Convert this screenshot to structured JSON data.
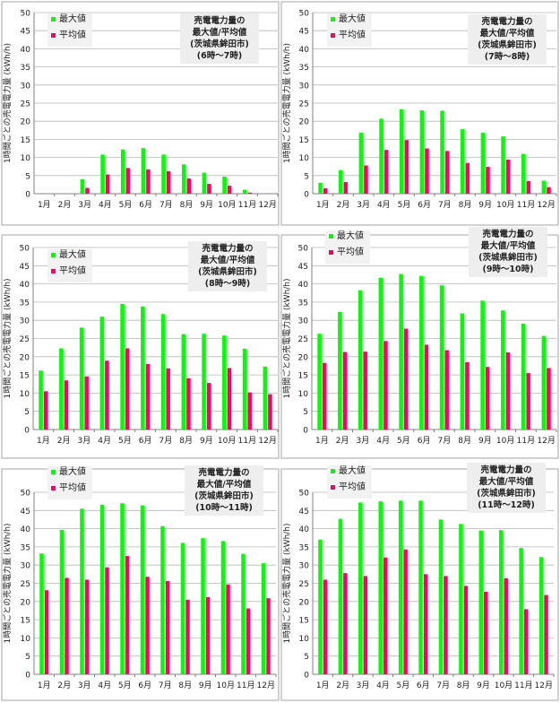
{
  "style": {
    "max_color": "#00ff00",
    "avg_color": "#ff0066",
    "grid_color": "#b8b8b8",
    "axis_color": "#808080",
    "title_box_color": "#eeeeee",
    "legend_box_color": "#f2f2f2"
  },
  "chart_data": [
    {
      "type": "bar",
      "title": [
        "売電電力量の",
        "最大値/平均値",
        "(茨城県鉾田市)",
        "(6時〜7時)"
      ],
      "ylabel": "1時間ごとの売電電力量 (kWh/h)",
      "ylim": [
        0,
        50
      ],
      "yticks": [
        "0",
        "5",
        "10",
        "15",
        "20",
        "25",
        "30",
        "35",
        "40",
        "45",
        "50"
      ],
      "categories": [
        "1月",
        "2月",
        "3月",
        "4月",
        "5月",
        "6月",
        "7月",
        "8月",
        "9月",
        "10月",
        "11月",
        "12月"
      ],
      "series": [
        {
          "name": "最大値",
          "values": [
            0,
            0,
            4.0,
            10.8,
            12.2,
            12.6,
            10.8,
            8.1,
            5.8,
            4.7,
            1.1,
            0
          ]
        },
        {
          "name": "平均値",
          "values": [
            0,
            0,
            1.6,
            5.3,
            7.1,
            6.7,
            6.2,
            4.2,
            2.7,
            2.2,
            0.3,
            0
          ]
        }
      ],
      "grid": true,
      "legend": "top-left"
    },
    {
      "type": "bar",
      "title": [
        "売電電力量の",
        "最大値/平均値",
        "(茨城県鉾田市)",
        "(7時〜8時)"
      ],
      "ylabel": "1時間ごとの売電電力量 (kWh/h)",
      "ylim": [
        0,
        50
      ],
      "yticks": [
        "0",
        "5",
        "10",
        "15",
        "20",
        "25",
        "30",
        "35",
        "40",
        "45",
        "50"
      ],
      "categories": [
        "1月",
        "2月",
        "3月",
        "4月",
        "5月",
        "6月",
        "7月",
        "8月",
        "9月",
        "10月",
        "11月",
        "12月"
      ],
      "series": [
        {
          "name": "最大値",
          "values": [
            3.0,
            6.5,
            16.8,
            20.7,
            23.3,
            23.0,
            22.9,
            17.8,
            16.8,
            15.8,
            11.0,
            3.6
          ]
        },
        {
          "name": "平均値",
          "values": [
            1.5,
            3.2,
            7.8,
            12.1,
            14.8,
            12.5,
            11.8,
            8.5,
            7.4,
            9.4,
            3.5,
            1.8
          ]
        }
      ],
      "grid": true,
      "legend": "top-left"
    },
    {
      "type": "bar",
      "title": [
        "売電電力量の",
        "最大値/平均値",
        "(茨城県鉾田市)",
        "(8時〜9時)"
      ],
      "ylabel": "1時間ごとの売電電力量 (kWh/h)",
      "ylim": [
        0,
        50
      ],
      "yticks": [
        "0",
        "5",
        "10",
        "15",
        "20",
        "25",
        "30",
        "35",
        "40",
        "45",
        "50"
      ],
      "categories": [
        "1月",
        "2月",
        "3月",
        "4月",
        "5月",
        "6月",
        "7月",
        "8月",
        "9月",
        "10月",
        "11月",
        "12月"
      ],
      "series": [
        {
          "name": "最大値",
          "values": [
            16.2,
            22.3,
            28.0,
            31.0,
            34.5,
            33.8,
            31.7,
            26.2,
            26.3,
            25.8,
            22.2,
            17.3
          ]
        },
        {
          "name": "平均値",
          "values": [
            10.5,
            13.5,
            14.6,
            18.9,
            22.3,
            18.0,
            16.8,
            14.1,
            12.8,
            16.9,
            10.2,
            9.7
          ]
        }
      ],
      "grid": true,
      "legend": "top-left"
    },
    {
      "type": "bar",
      "title": [
        "売電電力量の",
        "最大値/平均値",
        "(茨城県鉾田市)",
        "(9時〜10時)"
      ],
      "ylabel": "1時間ごとの売電電力量 (kWh/h)",
      "ylim": [
        0,
        50
      ],
      "yticks": [
        "0",
        "5",
        "10",
        "15",
        "20",
        "25",
        "30",
        "35",
        "40",
        "45",
        "50"
      ],
      "categories": [
        "1月",
        "2月",
        "3月",
        "4月",
        "5月",
        "6月",
        "7月",
        "8月",
        "9月",
        "10月",
        "11月",
        "12月"
      ],
      "series": [
        {
          "name": "最大値",
          "values": [
            26.3,
            32.3,
            38.2,
            41.7,
            42.7,
            42.2,
            39.6,
            31.9,
            35.4,
            32.7,
            29.1,
            25.7
          ]
        },
        {
          "name": "平均値",
          "values": [
            18.3,
            21.3,
            21.4,
            24.3,
            27.7,
            23.3,
            21.8,
            18.5,
            17.2,
            21.2,
            15.5,
            16.9
          ]
        }
      ],
      "grid": true,
      "legend": "top-left"
    },
    {
      "type": "bar",
      "title": [
        "売電電力量の",
        "最大値/平均値",
        "(茨城県鉾田市)",
        "(10時〜11時)"
      ],
      "ylabel": "1時間ごとの売電電力量 (kWh/h)",
      "ylim": [
        0,
        50
      ],
      "yticks": [
        "0",
        "5",
        "10",
        "15",
        "20",
        "25",
        "30",
        "35",
        "40",
        "45",
        "50"
      ],
      "categories": [
        "1月",
        "2月",
        "3月",
        "4月",
        "5月",
        "6月",
        "7月",
        "8月",
        "9月",
        "10月",
        "11月",
        "12月"
      ],
      "series": [
        {
          "name": "最大値",
          "values": [
            33.2,
            39.7,
            45.5,
            46.6,
            47.0,
            46.4,
            40.7,
            36.1,
            37.4,
            36.6,
            33.1,
            30.5
          ]
        },
        {
          "name": "平均値",
          "values": [
            23.1,
            26.5,
            26.0,
            29.4,
            32.5,
            26.8,
            25.6,
            20.5,
            21.2,
            24.7,
            18.1,
            20.9
          ]
        }
      ],
      "grid": true,
      "legend": "top-left"
    },
    {
      "type": "bar",
      "title": [
        "売電電力量の",
        "最大値/平均値",
        "(茨城県鉾田市)",
        "(11時〜12時)"
      ],
      "ylabel": "1時間ごとの売電電力量 (kWh/h)",
      "ylim": [
        0,
        50
      ],
      "yticks": [
        "0",
        "5",
        "10",
        "15",
        "20",
        "25",
        "30",
        "35",
        "40",
        "45",
        "50"
      ],
      "categories": [
        "1月",
        "2月",
        "3月",
        "4月",
        "5月",
        "6月",
        "7月",
        "8月",
        "9月",
        "10月",
        "11月",
        "12月"
      ],
      "series": [
        {
          "name": "最大値",
          "values": [
            37.0,
            42.7,
            47.2,
            47.5,
            47.7,
            47.7,
            42.5,
            41.3,
            39.5,
            39.6,
            34.7,
            32.2
          ]
        },
        {
          "name": "平均値",
          "values": [
            26.0,
            27.8,
            27.0,
            32.1,
            34.3,
            27.5,
            27.0,
            24.3,
            22.7,
            26.4,
            17.9,
            21.8
          ]
        }
      ],
      "grid": true,
      "legend": "top-left"
    }
  ]
}
